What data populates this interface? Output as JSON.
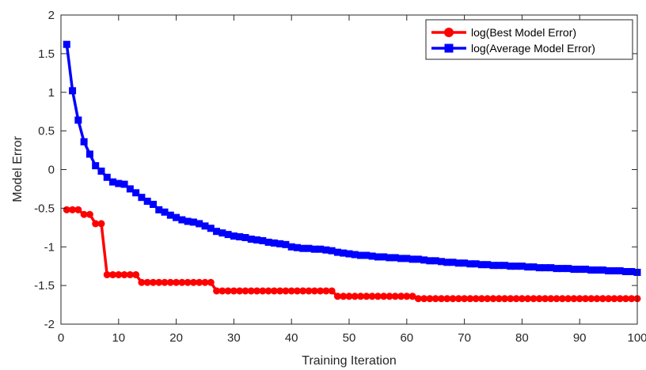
{
  "chart_data": {
    "type": "line",
    "title": "",
    "xlabel": "Training Iteration",
    "ylabel": "Model Error",
    "xlim": [
      0,
      100
    ],
    "ylim": [
      -2,
      2
    ],
    "xticks": [
      0,
      10,
      20,
      30,
      40,
      50,
      60,
      70,
      80,
      90,
      100
    ],
    "yticks": [
      -2,
      -1.5,
      -1,
      -0.5,
      0,
      0.5,
      1,
      1.5,
      2
    ],
    "grid": false,
    "legend_position": "top-right",
    "series": [
      {
        "name": "log(Best Model Error)",
        "color": "#ff0000",
        "marker": "circle",
        "x": [
          1,
          2,
          3,
          4,
          5,
          6,
          7,
          8,
          9,
          10,
          11,
          12,
          13,
          14,
          15,
          16,
          17,
          18,
          19,
          20,
          21,
          22,
          23,
          24,
          25,
          26,
          27,
          28,
          29,
          30,
          31,
          32,
          33,
          34,
          35,
          36,
          37,
          38,
          39,
          40,
          41,
          42,
          43,
          44,
          45,
          46,
          47,
          48,
          49,
          50,
          51,
          52,
          53,
          54,
          55,
          56,
          57,
          58,
          59,
          60,
          61,
          62,
          63,
          64,
          65,
          66,
          67,
          68,
          69,
          70,
          71,
          72,
          73,
          74,
          75,
          76,
          77,
          78,
          79,
          80,
          81,
          82,
          83,
          84,
          85,
          86,
          87,
          88,
          89,
          90,
          91,
          92,
          93,
          94,
          95,
          96,
          97,
          98,
          99,
          100
        ],
        "y": [
          -0.52,
          -0.52,
          -0.52,
          -0.58,
          -0.58,
          -0.7,
          -0.7,
          -1.36,
          -1.36,
          -1.36,
          -1.36,
          -1.36,
          -1.36,
          -1.46,
          -1.46,
          -1.46,
          -1.46,
          -1.46,
          -1.46,
          -1.46,
          -1.46,
          -1.46,
          -1.46,
          -1.46,
          -1.46,
          -1.46,
          -1.57,
          -1.57,
          -1.57,
          -1.57,
          -1.57,
          -1.57,
          -1.57,
          -1.57,
          -1.57,
          -1.57,
          -1.57,
          -1.57,
          -1.57,
          -1.57,
          -1.57,
          -1.57,
          -1.57,
          -1.57,
          -1.57,
          -1.57,
          -1.57,
          -1.64,
          -1.64,
          -1.64,
          -1.64,
          -1.64,
          -1.64,
          -1.64,
          -1.64,
          -1.64,
          -1.64,
          -1.64,
          -1.64,
          -1.64,
          -1.64,
          -1.67,
          -1.67,
          -1.67,
          -1.67,
          -1.67,
          -1.67,
          -1.67,
          -1.67,
          -1.67,
          -1.67,
          -1.67,
          -1.67,
          -1.67,
          -1.67,
          -1.67,
          -1.67,
          -1.67,
          -1.67,
          -1.67,
          -1.67,
          -1.67,
          -1.67,
          -1.67,
          -1.67,
          -1.67,
          -1.67,
          -1.67,
          -1.67,
          -1.67,
          -1.67,
          -1.67,
          -1.67,
          -1.67,
          -1.67,
          -1.67,
          -1.67,
          -1.67,
          -1.67,
          -1.67
        ]
      },
      {
        "name": "log(Average Model Error)",
        "color": "#0000ff",
        "marker": "square",
        "x": [
          1,
          2,
          3,
          4,
          5,
          6,
          7,
          8,
          9,
          10,
          11,
          12,
          13,
          14,
          15,
          16,
          17,
          18,
          19,
          20,
          21,
          22,
          23,
          24,
          25,
          26,
          27,
          28,
          29,
          30,
          31,
          32,
          33,
          34,
          35,
          36,
          37,
          38,
          39,
          40,
          41,
          42,
          43,
          44,
          45,
          46,
          47,
          48,
          49,
          50,
          51,
          52,
          53,
          54,
          55,
          56,
          57,
          58,
          59,
          60,
          61,
          62,
          63,
          64,
          65,
          66,
          67,
          68,
          69,
          70,
          71,
          72,
          73,
          74,
          75,
          76,
          77,
          78,
          79,
          80,
          81,
          82,
          83,
          84,
          85,
          86,
          87,
          88,
          89,
          90,
          91,
          92,
          93,
          94,
          95,
          96,
          97,
          98,
          99,
          100
        ],
        "y": [
          1.62,
          1.02,
          0.64,
          0.36,
          0.2,
          0.05,
          -0.02,
          -0.1,
          -0.16,
          -0.18,
          -0.19,
          -0.25,
          -0.3,
          -0.36,
          -0.41,
          -0.45,
          -0.52,
          -0.55,
          -0.59,
          -0.62,
          -0.65,
          -0.67,
          -0.68,
          -0.7,
          -0.73,
          -0.76,
          -0.8,
          -0.82,
          -0.84,
          -0.86,
          -0.87,
          -0.88,
          -0.9,
          -0.91,
          -0.92,
          -0.94,
          -0.95,
          -0.96,
          -0.97,
          -1.0,
          -1.01,
          -1.02,
          -1.02,
          -1.03,
          -1.03,
          -1.04,
          -1.05,
          -1.07,
          -1.08,
          -1.09,
          -1.1,
          -1.11,
          -1.11,
          -1.12,
          -1.13,
          -1.13,
          -1.14,
          -1.14,
          -1.15,
          -1.15,
          -1.16,
          -1.16,
          -1.17,
          -1.18,
          -1.18,
          -1.19,
          -1.2,
          -1.2,
          -1.21,
          -1.21,
          -1.22,
          -1.22,
          -1.23,
          -1.23,
          -1.24,
          -1.24,
          -1.24,
          -1.25,
          -1.25,
          -1.25,
          -1.26,
          -1.26,
          -1.27,
          -1.27,
          -1.27,
          -1.28,
          -1.28,
          -1.28,
          -1.29,
          -1.29,
          -1.29,
          -1.3,
          -1.3,
          -1.3,
          -1.31,
          -1.31,
          -1.31,
          -1.32,
          -1.32,
          -1.33
        ]
      }
    ]
  }
}
